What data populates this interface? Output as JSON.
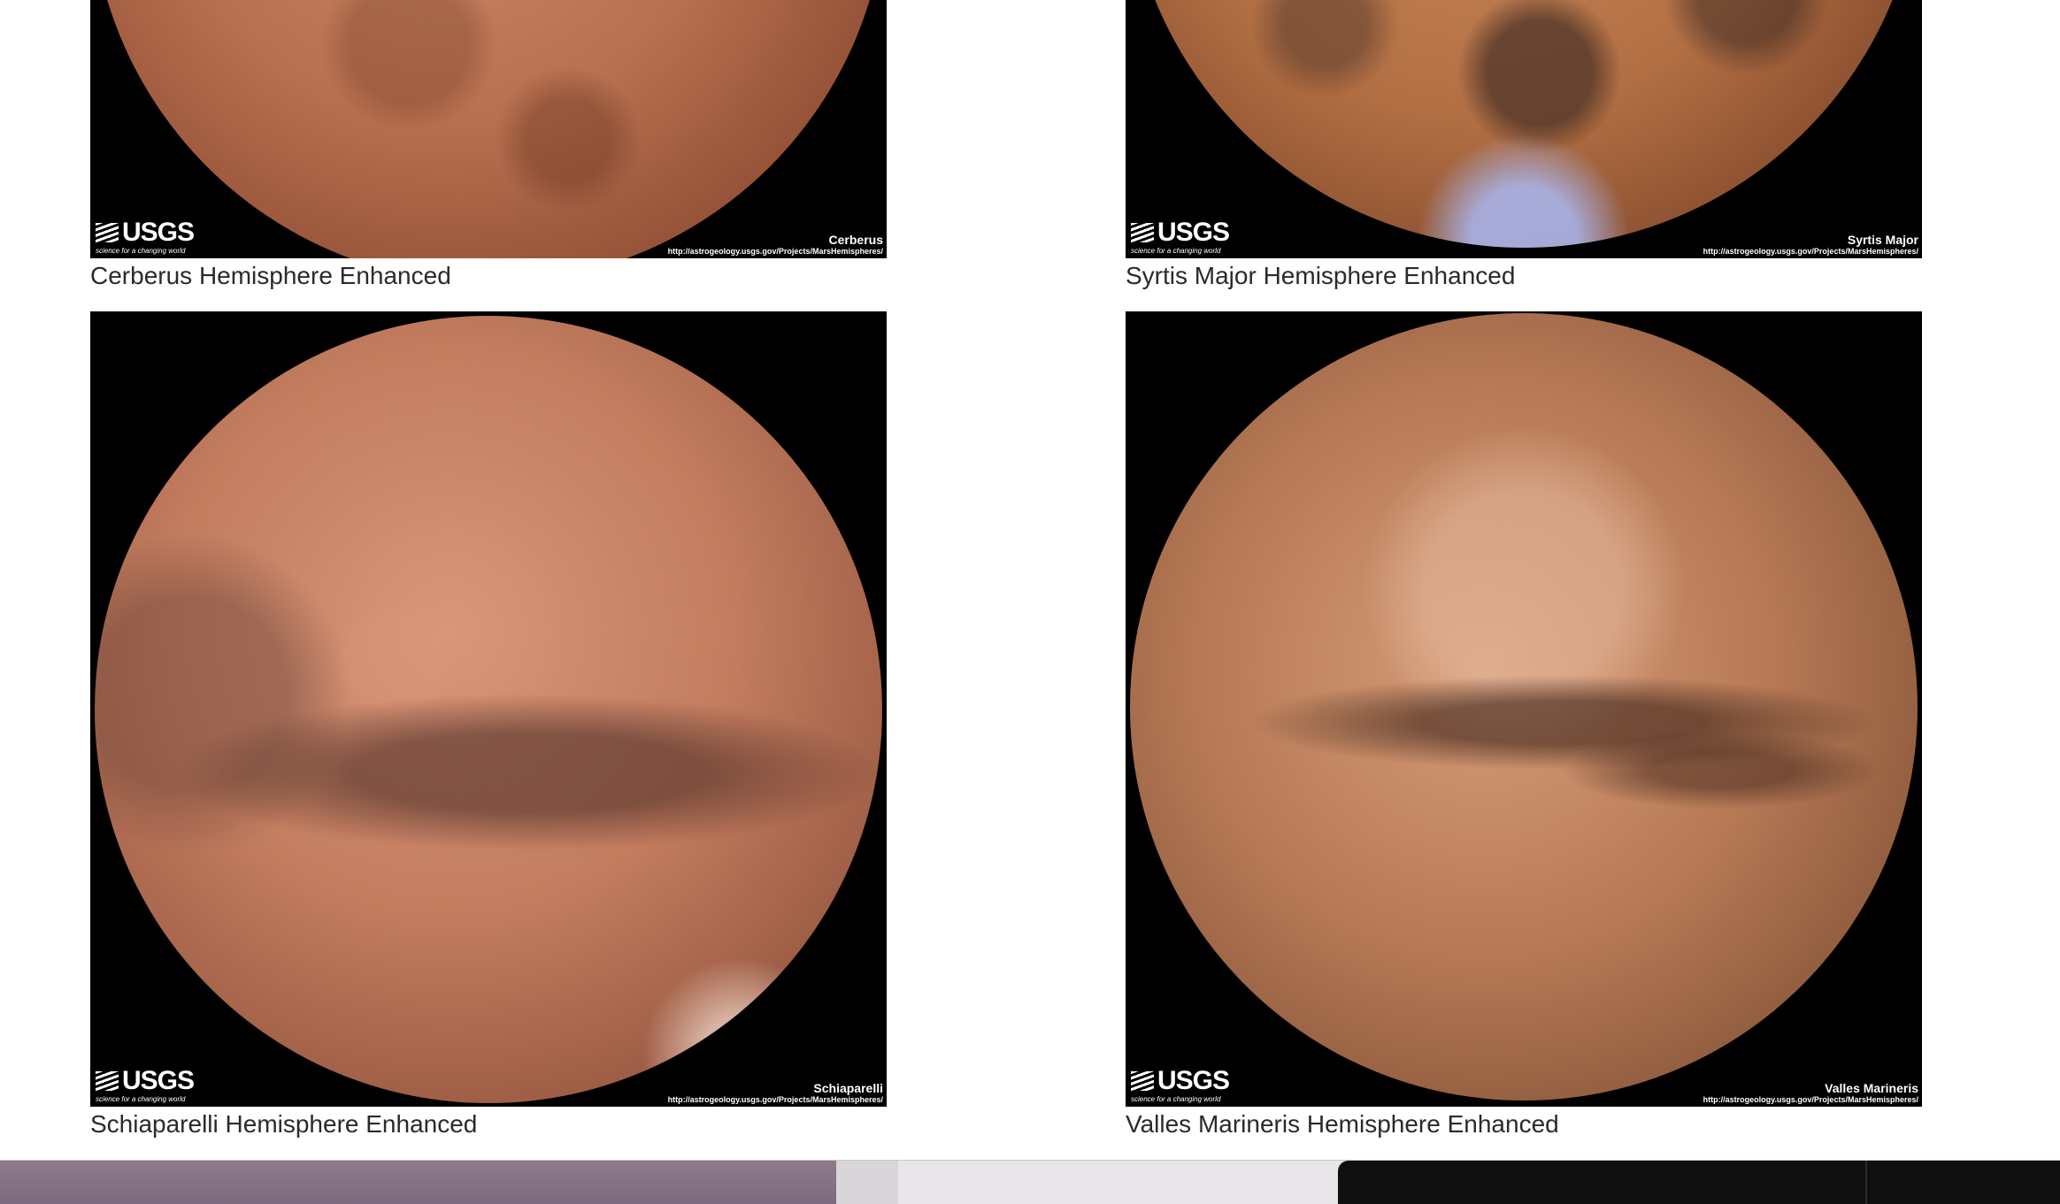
{
  "gallery": {
    "items": [
      {
        "caption": "Cerberus Hemisphere Enhanced",
        "image_label": "Cerberus",
        "logo_text": "USGS",
        "logo_tagline": "science for a changing world",
        "url": "http://astrogeology.usgs.gov/Projects/MarsHemispheres/"
      },
      {
        "caption": "Syrtis Major Hemisphere Enhanced",
        "image_label": "Syrtis Major",
        "logo_text": "USGS",
        "logo_tagline": "science for a changing world",
        "url": "http://astrogeology.usgs.gov/Projects/MarsHemispheres/"
      },
      {
        "caption": "Schiaparelli Hemisphere Enhanced",
        "image_label": "Schiaparelli",
        "logo_text": "USGS",
        "logo_tagline": "science for a changing world",
        "url": "http://astrogeology.usgs.gov/Projects/MarsHemispheres/"
      },
      {
        "caption": "Valles Marineris Hemisphere Enhanced",
        "image_label": "Valles Marineris",
        "logo_text": "USGS",
        "logo_tagline": "science for a changing world",
        "url": "http://astrogeology.usgs.gov/Projects/MarsHemispheres/"
      }
    ]
  }
}
